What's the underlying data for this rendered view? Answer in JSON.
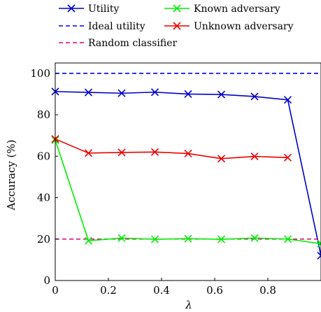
{
  "chart_data": {
    "type": "line",
    "xlabel": "λ",
    "ylabel": "Accuracy (%)",
    "xlim": [
      0,
      1
    ],
    "ylim": [
      0,
      105
    ],
    "x_ticks": [
      0,
      0.2,
      0.4,
      0.6,
      0.8
    ],
    "y_ticks": [
      0,
      20,
      40,
      60,
      80,
      100
    ],
    "grid": false,
    "legend_position": "top",
    "series": [
      {
        "name": "Utility",
        "color": "#0000cc",
        "style": "solid",
        "marker": "x",
        "x": [
          0,
          0.125,
          0.25,
          0.375,
          0.5,
          0.625,
          0.75,
          0.875,
          1.0
        ],
        "y": [
          91.2,
          90.8,
          90.4,
          90.9,
          90.0,
          89.8,
          88.8,
          87.2,
          12.0
        ]
      },
      {
        "name": "Ideal utility",
        "color": "#0000ff",
        "style": "dashed",
        "marker": "none",
        "x": [
          0,
          1
        ],
        "y": [
          100,
          100
        ]
      },
      {
        "name": "Random classifier",
        "color": "#dd0077",
        "style": "dashed",
        "marker": "none",
        "x": [
          0,
          1
        ],
        "y": [
          20,
          20
        ]
      },
      {
        "name": "Known adversary",
        "color": "#00ee00",
        "style": "solid",
        "marker": "x",
        "x": [
          0,
          0.125,
          0.25,
          0.375,
          0.5,
          0.625,
          0.75,
          0.875,
          1.0
        ],
        "y": [
          67.8,
          19.2,
          20.5,
          19.9,
          20.2,
          19.9,
          20.5,
          20.0,
          17.8
        ]
      },
      {
        "name": "Unknown adversary",
        "color": "#ee0000",
        "style": "solid",
        "marker": "x",
        "x": [
          0,
          0.125,
          0.25,
          0.375,
          0.5,
          0.625,
          0.75,
          0.875
        ],
        "y": [
          68.3,
          61.5,
          61.8,
          62.0,
          61.3,
          58.8,
          59.9,
          59.3
        ]
      }
    ]
  }
}
